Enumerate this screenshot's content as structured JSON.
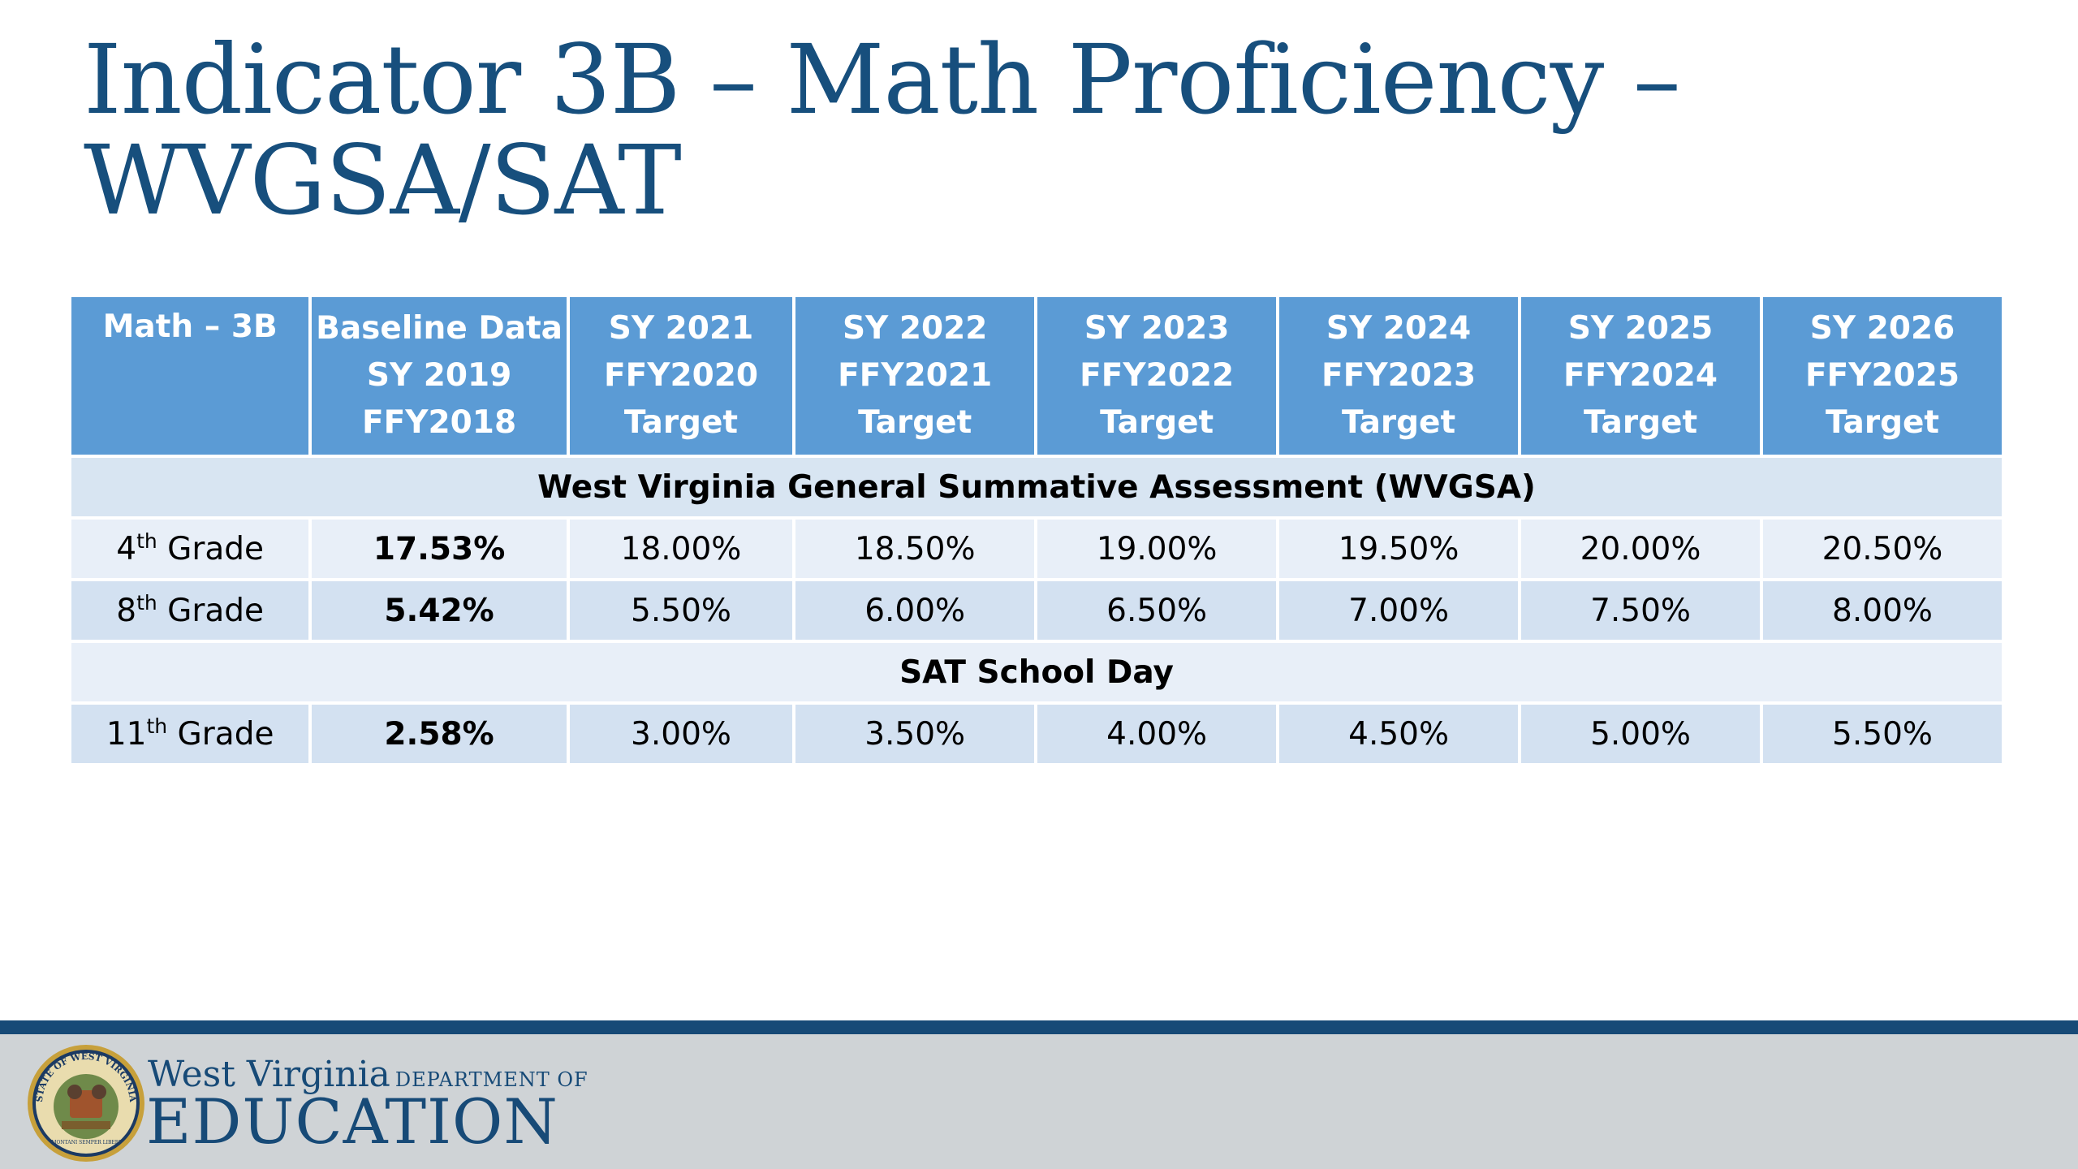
{
  "title": {
    "line1": "Indicator 3B – Math Proficiency –",
    "line2": "WVGSA/SAT"
  },
  "table": {
    "headers": [
      [
        "Math – 3B"
      ],
      [
        "Baseline Data",
        "SY 2019",
        "FFY2018"
      ],
      [
        "SY 2021",
        "FFY2020",
        "Target"
      ],
      [
        "SY 2022",
        "FFY2021",
        "Target"
      ],
      [
        "SY 2023",
        "FFY2022",
        "Target"
      ],
      [
        "SY 2024",
        "FFY2023",
        "Target"
      ],
      [
        "SY 2025",
        "FFY2024",
        "Target"
      ],
      [
        "SY 2026",
        "FFY2025",
        "Target"
      ]
    ],
    "sections": [
      {
        "label": "West Virginia General Summative Assessment (WVGSA)",
        "rows": [
          {
            "grade_num": "4",
            "grade_sup": "th",
            "grade_word": "Grade",
            "values": [
              "17.53%",
              "18.00%",
              "18.50%",
              "19.00%",
              "19.50%",
              "20.00%",
              "20.50%"
            ]
          },
          {
            "grade_num": "8",
            "grade_sup": "th",
            "grade_word": "Grade",
            "values": [
              "5.42%",
              "5.50%",
              "6.00%",
              "6.50%",
              "7.00%",
              "7.50%",
              "8.00%"
            ]
          }
        ]
      },
      {
        "label": "SAT School Day",
        "rows": [
          {
            "grade_num": "11",
            "grade_sup": "th",
            "grade_word": "Grade",
            "values": [
              "2.58%",
              "3.00%",
              "3.50%",
              "4.00%",
              "4.50%",
              "5.00%",
              "5.50%"
            ]
          }
        ]
      }
    ]
  },
  "footer": {
    "brand_line1": "West Virginia",
    "brand_dept": "DEPARTMENT OF",
    "brand_line2": "EDUCATION",
    "seal_text": "STATE OF WEST VIRGINIA",
    "seal_motto": "MONTANI SEMPER LIBERI"
  },
  "colors": {
    "title": "#174f7d",
    "header_bg": "#5b9bd5",
    "section_bg": "#d8e5f2",
    "row_odd_bg": "#e8eff8",
    "row_even_bg": "#d3e1f1",
    "footer_bar": "#174a77",
    "footer_bg": "#cfd3d6"
  }
}
